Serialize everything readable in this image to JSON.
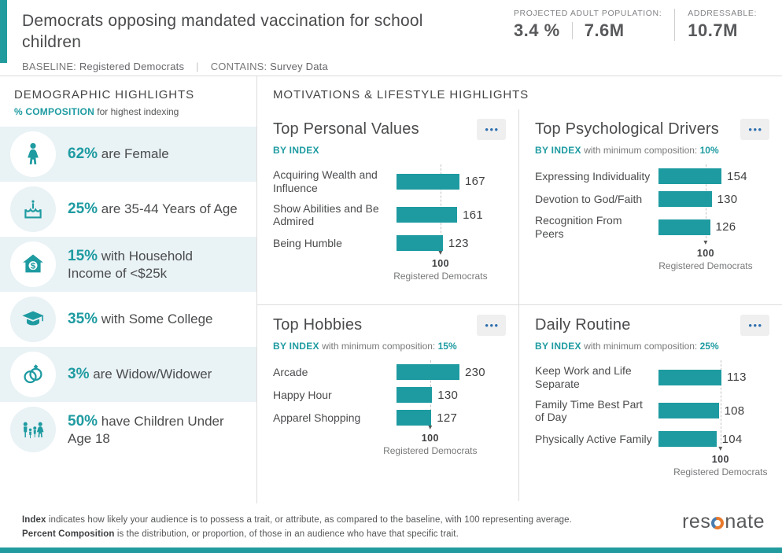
{
  "header": {
    "title": "Democrats opposing mandated vaccination for school children",
    "baseline_label": "BASELINE:",
    "baseline_value": "Registered Democrats",
    "separator": "|",
    "contains_label": "CONTAINS:",
    "contains_value": "Survey Data",
    "stats": {
      "projected_label": "PROJECTED ADULT POPULATION:",
      "projected_pct": "3.4 %",
      "projected_count": "7.6M",
      "addressable_label": "ADDRESSABLE:",
      "addressable_value": "10.7M"
    }
  },
  "sidebar": {
    "title": "DEMOGRAPHIC HIGHLIGHTS",
    "subtitle_highlight": "% COMPOSITION",
    "subtitle_rest": " for highest indexing",
    "items": [
      {
        "icon": "female-icon",
        "pct": "62%",
        "text": " are Female"
      },
      {
        "icon": "birthday-cake-icon",
        "pct": "25%",
        "text": " are 35-44 Years of Age"
      },
      {
        "icon": "house-dollar-icon",
        "pct": "15%",
        "text": " with Household Income of <$25k"
      },
      {
        "icon": "graduation-cap-icon",
        "pct": "35%",
        "text": " with Some College"
      },
      {
        "icon": "wedding-rings-icon",
        "pct": "3%",
        "text": " are Widow/Widower"
      },
      {
        "icon": "family-icon",
        "pct": "50%",
        "text": " have Children Under Age 18"
      }
    ]
  },
  "main": {
    "title": "MOTIVATIONS & LIFESTYLE HIGHLIGHTS",
    "cards": [
      {
        "title": "Top Personal Values",
        "by_index": "BY INDEX",
        "min_text": "",
        "min_value": ""
      },
      {
        "title": "Top Psychological Drivers",
        "by_index": "BY INDEX",
        "min_text": " with minimum composition: ",
        "min_value": "10%"
      },
      {
        "title": "Top Hobbies",
        "by_index": "BY INDEX",
        "min_text": " with minimum composition: ",
        "min_value": "15%"
      },
      {
        "title": "Daily Routine",
        "by_index": "BY INDEX",
        "min_text": " with minimum composition: ",
        "min_value": "25%"
      }
    ]
  },
  "chart_data": [
    {
      "type": "bar",
      "title": "Top Personal Values",
      "categories": [
        "Acquiring Wealth and Influence",
        "Show Abilities and Be Admired",
        "Being Humble"
      ],
      "values": [
        167,
        161,
        123
      ],
      "baseline": 100,
      "baseline_label": "Registered Democrats"
    },
    {
      "type": "bar",
      "title": "Top Psychological Drivers",
      "categories": [
        "Expressing Individuality",
        "Devotion to God/Faith",
        "Recognition From Peers"
      ],
      "values": [
        154,
        130,
        126
      ],
      "baseline": 100,
      "baseline_label": "Registered Democrats"
    },
    {
      "type": "bar",
      "title": "Top Hobbies",
      "categories": [
        "Arcade",
        "Happy Hour",
        "Apparel Shopping"
      ],
      "values": [
        230,
        130,
        127
      ],
      "baseline": 100,
      "baseline_label": "Registered Democrats"
    },
    {
      "type": "bar",
      "title": "Daily Routine",
      "categories": [
        "Keep Work and Life Separate",
        "Family Time Best Part of Day",
        "Physically Active Family"
      ],
      "values": [
        113,
        108,
        104
      ],
      "baseline": 100,
      "baseline_label": "Registered Democrats"
    }
  ],
  "footer": {
    "line1_bold": "Index",
    "line1_rest": " indicates how likely your audience is to possess a trait, or attribute, as compared to the baseline, with 100 representing average.",
    "line2_bold": "Percent Composition",
    "line2_rest": " is the distribution, or proportion, of those in an audience who have that specific trait.",
    "logo_pre": "res",
    "logo_post": "nate"
  },
  "icons": {
    "ellipsis": "•••",
    "arrow_down": "▾"
  },
  "colors": {
    "accent_teal": "#1e9ba1",
    "bar_teal": "#1e9ba1",
    "menu_dot_blue": "#2e6fad",
    "row_alt_bg": "#e9f2f5",
    "divider": "#dcdcdc",
    "logo_blue": "#4a7db0",
    "logo_orange": "#e87a2e"
  }
}
